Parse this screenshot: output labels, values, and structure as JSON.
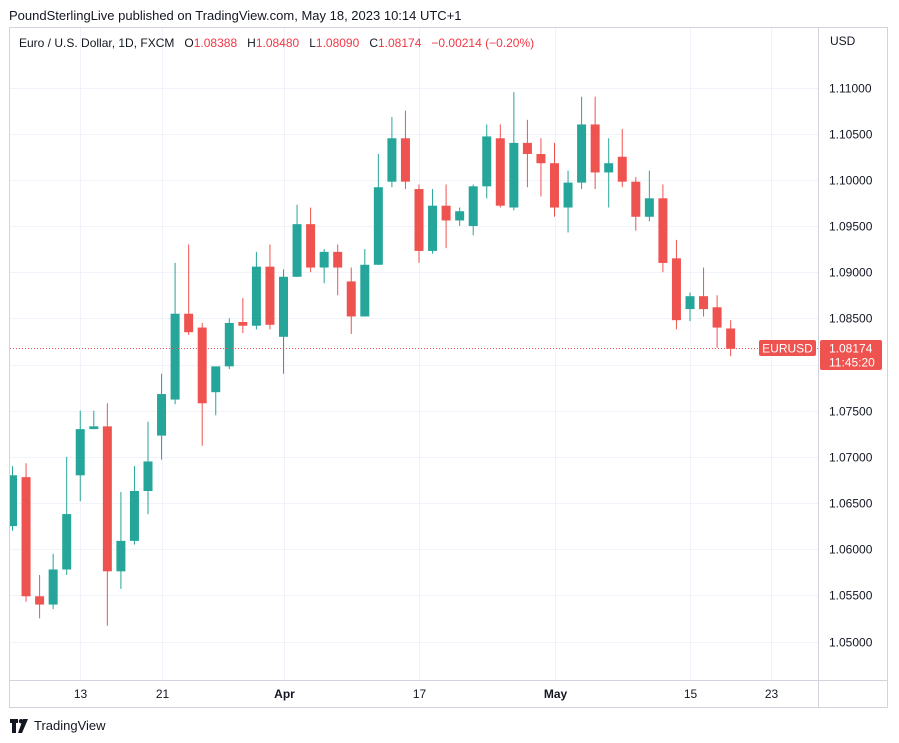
{
  "caption": "PoundSterlingLive published on TradingView.com, May 18, 2023 10:14 UTC+1",
  "legend": {
    "title": "Euro / U.S. Dollar, 1D, FXCM",
    "o_label": "O",
    "o_value": "1.08388",
    "h_label": "H",
    "h_value": "1.08480",
    "l_label": "L",
    "l_value": "1.08090",
    "c_label": "C",
    "c_value": "1.08174",
    "change": "−0.00214 (−0.20%)"
  },
  "currency": "USD",
  "price_tag": {
    "symbol": "EURUSD",
    "price": "1.08174",
    "countdown": "11:45:20"
  },
  "brand": "TradingView",
  "colors": {
    "up": "#26a69a",
    "down": "#ef5350",
    "grid": "#f0f3fa",
    "axis": "#d1d4dc",
    "text": "#131722"
  },
  "chart_data": {
    "type": "candlestick",
    "symbol": "EURUSD",
    "interval": "1D",
    "ylim": [
      1.045,
      1.115
    ],
    "y_ticks": [
      "1.05000",
      "1.05500",
      "1.06000",
      "1.06500",
      "1.07000",
      "1.07500",
      "1.08000",
      "1.08500",
      "1.09000",
      "1.09500",
      "1.10000",
      "1.10500",
      "1.11000"
    ],
    "x_ticks": [
      {
        "label": "13",
        "index": 5,
        "bold": false
      },
      {
        "label": "21",
        "index": 11,
        "bold": false
      },
      {
        "label": "Apr",
        "index": 20,
        "bold": true
      },
      {
        "label": "17",
        "index": 30,
        "bold": false
      },
      {
        "label": "May",
        "index": 40,
        "bold": true
      },
      {
        "label": "15",
        "index": 50,
        "bold": false
      },
      {
        "label": "23",
        "index": 56,
        "bold": false
      }
    ],
    "last_price": 1.08174,
    "candles": [
      {
        "o": 1.0625,
        "h": 1.069,
        "l": 1.062,
        "c": 1.068
      },
      {
        "o": 1.0678,
        "h": 1.0693,
        "l": 1.0543,
        "c": 1.0549
      },
      {
        "o": 1.0549,
        "h": 1.0572,
        "l": 1.0525,
        "c": 1.054
      },
      {
        "o": 1.054,
        "h": 1.0595,
        "l": 1.0535,
        "c": 1.0578
      },
      {
        "o": 1.0578,
        "h": 1.07,
        "l": 1.0572,
        "c": 1.0638
      },
      {
        "o": 1.068,
        "h": 1.075,
        "l": 1.0652,
        "c": 1.073
      },
      {
        "o": 1.073,
        "h": 1.075,
        "l": 1.073,
        "c": 1.0733
      },
      {
        "o": 1.0733,
        "h": 1.0758,
        "l": 1.0517,
        "c": 1.0576
      },
      {
        "o": 1.0576,
        "h": 1.0662,
        "l": 1.0557,
        "c": 1.0609
      },
      {
        "o": 1.0609,
        "h": 1.069,
        "l": 1.0605,
        "c": 1.0663
      },
      {
        "o": 1.0663,
        "h": 1.0738,
        "l": 1.0638,
        "c": 1.0695
      },
      {
        "o": 1.0723,
        "h": 1.079,
        "l": 1.0697,
        "c": 1.0768
      },
      {
        "o": 1.0762,
        "h": 1.091,
        "l": 1.0757,
        "c": 1.0855
      },
      {
        "o": 1.0855,
        "h": 1.093,
        "l": 1.0832,
        "c": 1.0835
      },
      {
        "o": 1.084,
        "h": 1.0845,
        "l": 1.0712,
        "c": 1.0758
      },
      {
        "o": 1.077,
        "h": 1.0795,
        "l": 1.0745,
        "c": 1.0798
      },
      {
        "o": 1.0798,
        "h": 1.085,
        "l": 1.0795,
        "c": 1.0845
      },
      {
        "o": 1.0846,
        "h": 1.0872,
        "l": 1.0834,
        "c": 1.0842
      },
      {
        "o": 1.0842,
        "h": 1.0922,
        "l": 1.0838,
        "c": 1.0906
      },
      {
        "o": 1.0906,
        "h": 1.093,
        "l": 1.0838,
        "c": 1.0843
      },
      {
        "o": 1.083,
        "h": 1.0903,
        "l": 1.079,
        "c": 1.0895
      },
      {
        "o": 1.0895,
        "h": 1.0973,
        "l": 1.0895,
        "c": 1.0952
      },
      {
        "o": 1.0952,
        "h": 1.097,
        "l": 1.09,
        "c": 1.0905
      },
      {
        "o": 1.0905,
        "h": 1.0925,
        "l": 1.0888,
        "c": 1.0922
      },
      {
        "o": 1.0922,
        "h": 1.093,
        "l": 1.0875,
        "c": 1.0905
      },
      {
        "o": 1.089,
        "h": 1.0905,
        "l": 1.0833,
        "c": 1.0852
      },
      {
        "o": 1.0852,
        "h": 1.0925,
        "l": 1.0852,
        "c": 1.0908
      },
      {
        "o": 1.0908,
        "h": 1.1028,
        "l": 1.0908,
        "c": 1.0992
      },
      {
        "o": 1.0998,
        "h": 1.1068,
        "l": 1.0992,
        "c": 1.1045
      },
      {
        "o": 1.1045,
        "h": 1.1075,
        "l": 1.099,
        "c": 1.0998
      },
      {
        "o": 1.099,
        "h": 1.0995,
        "l": 1.091,
        "c": 1.0923
      },
      {
        "o": 1.0923,
        "h": 1.099,
        "l": 1.092,
        "c": 1.0972
      },
      {
        "o": 1.0972,
        "h": 1.0995,
        "l": 1.0926,
        "c": 1.0956
      },
      {
        "o": 1.0956,
        "h": 1.097,
        "l": 1.095,
        "c": 1.0966
      },
      {
        "o": 1.095,
        "h": 1.0995,
        "l": 1.094,
        "c": 1.0993
      },
      {
        "o": 1.0993,
        "h": 1.106,
        "l": 1.098,
        "c": 1.1047
      },
      {
        "o": 1.1045,
        "h": 1.106,
        "l": 1.097,
        "c": 1.0972
      },
      {
        "o": 1.097,
        "h": 1.1095,
        "l": 1.0967,
        "c": 1.104
      },
      {
        "o": 1.104,
        "h": 1.1065,
        "l": 1.0992,
        "c": 1.1028
      },
      {
        "o": 1.1028,
        "h": 1.1045,
        "l": 1.0982,
        "c": 1.1018
      },
      {
        "o": 1.1018,
        "h": 1.104,
        "l": 1.096,
        "c": 1.097
      },
      {
        "o": 1.097,
        "h": 1.101,
        "l": 1.0943,
        "c": 1.0997
      },
      {
        "o": 1.0997,
        "h": 1.109,
        "l": 1.099,
        "c": 1.106
      },
      {
        "o": 1.106,
        "h": 1.109,
        "l": 1.099,
        "c": 1.1008
      },
      {
        "o": 1.1008,
        "h": 1.1045,
        "l": 1.097,
        "c": 1.1018
      },
      {
        "o": 1.1025,
        "h": 1.1055,
        "l": 1.0992,
        "c": 1.0998
      },
      {
        "o": 1.0998,
        "h": 1.1003,
        "l": 1.0945,
        "c": 1.096
      },
      {
        "o": 1.096,
        "h": 1.101,
        "l": 1.0955,
        "c": 1.098
      },
      {
        "o": 1.098,
        "h": 1.0995,
        "l": 1.09,
        "c": 1.091
      },
      {
        "o": 1.0915,
        "h": 1.0935,
        "l": 1.0838,
        "c": 1.0848
      },
      {
        "o": 1.086,
        "h": 1.0878,
        "l": 1.0847,
        "c": 1.0874
      },
      {
        "o": 1.0874,
        "h": 1.0905,
        "l": 1.0852,
        "c": 1.086
      },
      {
        "o": 1.0862,
        "h": 1.0875,
        "l": 1.0818,
        "c": 1.084
      },
      {
        "o": 1.0839,
        "h": 1.0848,
        "l": 1.0809,
        "c": 1.0817
      }
    ]
  }
}
